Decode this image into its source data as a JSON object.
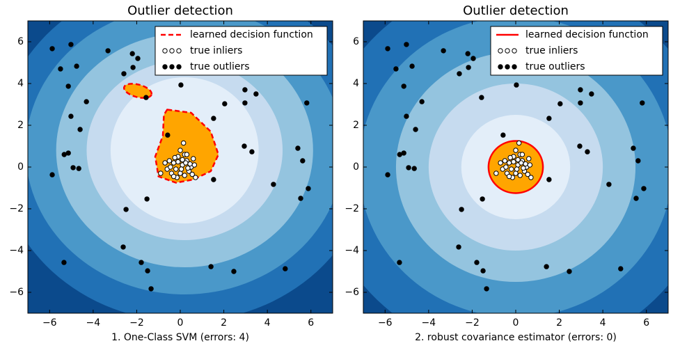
{
  "chart_data": [
    {
      "type": "scatter",
      "title": "Outlier detection",
      "xlabel": "1. One-Class SVM (errors: 4)",
      "xlim": [
        -7,
        7
      ],
      "ylim": [
        -7,
        7
      ],
      "xticks": [
        {
          "value": -6,
          "label": "−6"
        },
        {
          "value": -4,
          "label": "−4"
        },
        {
          "value": -2,
          "label": "−2"
        },
        0,
        2,
        4,
        6
      ],
      "yticks": [
        {
          "value": -6,
          "label": "−6"
        },
        {
          "value": -4,
          "label": "−4"
        },
        {
          "value": -2,
          "label": "−2"
        },
        0,
        2,
        4,
        6
      ],
      "boundary": {
        "name": "learned decision function",
        "color": "#ff0000",
        "dashed": true
      },
      "series": [
        {
          "name": "true inliers",
          "color": "#ffffff",
          "x": [
            0.0,
            0.2,
            -0.1,
            0.3,
            -0.3,
            0.1,
            0.5,
            -0.5,
            -0.2,
            0.4,
            0.0,
            -0.4,
            0.2,
            0.6,
            -0.6,
            0.7,
            -0.9,
            -0.7,
            0.3,
            0.15,
            -0.15,
            0.45,
            -0.25,
            0.05,
            0.35,
            -0.45,
            0.25,
            -0.1,
            0.55,
            -0.3,
            0.1,
            0.65
          ],
          "y": [
            0.8,
            0.6,
            0.5,
            0.3,
            0.2,
            0.1,
            0.0,
            0.3,
            -0.1,
            -0.2,
            -0.3,
            -0.3,
            -0.4,
            0.4,
            -0.1,
            -0.5,
            -0.3,
            0.2,
            0.6,
            1.15,
            -0.5,
            0.15,
            0.45,
            -0.1,
            -0.05,
            0.0,
            0.2,
            0.25,
            -0.35,
            -0.45,
            0.35,
            0.1
          ]
        },
        {
          "name": "true outliers",
          "color": "#000000",
          "x": [
            -5.88,
            -5.02,
            -5.5,
            -4.76,
            -3.32,
            -2.2,
            -1.95,
            -2.59,
            -2.17,
            -5.14,
            -4.31,
            -1.57,
            0.03,
            -5.02,
            -4.6,
            2.04,
            2.97,
            3.48,
            2.97,
            5.81,
            1.53,
            -0.58,
            2.94,
            3.29,
            5.4,
            5.62,
            -5.33,
            -5.14,
            -5.88,
            -4.92,
            -4.66,
            1.53,
            4.28,
            5.88,
            5.53,
            -1.53,
            -2.49,
            -2.62,
            -5.34,
            -1.79,
            -1.5,
            -1.34,
            1.41,
            2.46,
            4.82
          ],
          "y": [
            5.67,
            5.87,
            4.7,
            4.83,
            5.57,
            5.43,
            5.2,
            4.47,
            4.77,
            3.87,
            3.13,
            3.33,
            3.93,
            2.43,
            1.8,
            3.03,
            3.7,
            3.5,
            3.07,
            3.07,
            2.33,
            1.53,
            1.0,
            0.73,
            0.9,
            0.3,
            0.6,
            0.67,
            -0.37,
            -0.03,
            -0.07,
            -0.6,
            -0.83,
            -1.03,
            -1.5,
            -1.53,
            -2.03,
            -3.83,
            -4.57,
            -4.57,
            -4.97,
            -5.83,
            -4.77,
            -5.0,
            -4.87
          ]
        }
      ]
    },
    {
      "type": "scatter",
      "title": "Outlier detection",
      "xlabel": "2. robust covariance estimator (errors: 0)",
      "xlim": [
        -7,
        7
      ],
      "ylim": [
        -7,
        7
      ],
      "xticks": [
        {
          "value": -6,
          "label": "−6"
        },
        {
          "value": -4,
          "label": "−4"
        },
        {
          "value": -2,
          "label": "−2"
        },
        0,
        2,
        4,
        6
      ],
      "yticks": [
        {
          "value": -6,
          "label": "−6"
        },
        {
          "value": -4,
          "label": "−4"
        },
        {
          "value": -2,
          "label": "−2"
        },
        0,
        2,
        4,
        6
      ],
      "boundary": {
        "name": "learned decision function",
        "color": "#ff0000",
        "dashed": false
      },
      "series": [
        {
          "name": "true inliers",
          "color": "#ffffff",
          "x": [
            0.0,
            0.2,
            -0.1,
            0.3,
            -0.3,
            0.1,
            0.5,
            -0.5,
            -0.2,
            0.4,
            0.0,
            -0.4,
            0.2,
            0.6,
            -0.6,
            0.7,
            -0.9,
            -0.7,
            0.3,
            0.15,
            -0.15,
            0.45,
            -0.25,
            0.05,
            0.35,
            -0.45,
            0.25,
            -0.1,
            0.55,
            -0.3,
            0.1,
            0.65
          ],
          "y": [
            0.8,
            0.6,
            0.5,
            0.3,
            0.2,
            0.1,
            0.0,
            0.3,
            -0.1,
            -0.2,
            -0.3,
            -0.3,
            -0.4,
            0.4,
            -0.1,
            -0.5,
            -0.3,
            0.2,
            0.6,
            1.15,
            -0.5,
            0.15,
            0.45,
            -0.1,
            -0.05,
            0.0,
            0.2,
            0.25,
            -0.35,
            -0.45,
            0.35,
            0.1
          ]
        },
        {
          "name": "true outliers",
          "color": "#000000",
          "x": [
            -5.88,
            -5.02,
            -5.5,
            -4.76,
            -3.32,
            -2.2,
            -1.95,
            -2.59,
            -2.17,
            -5.14,
            -4.31,
            -1.57,
            0.03,
            -5.02,
            -4.6,
            2.04,
            2.97,
            3.48,
            2.97,
            5.81,
            1.53,
            -0.58,
            2.94,
            3.29,
            5.4,
            5.62,
            -5.33,
            -5.14,
            -5.88,
            -4.92,
            -4.66,
            1.53,
            4.28,
            5.88,
            5.53,
            -1.53,
            -2.49,
            -2.62,
            -5.34,
            -1.79,
            -1.5,
            -1.34,
            1.41,
            2.46,
            4.82
          ],
          "y": [
            5.67,
            5.87,
            4.7,
            4.83,
            5.57,
            5.43,
            5.2,
            4.47,
            4.77,
            3.87,
            3.13,
            3.33,
            3.93,
            2.43,
            1.8,
            3.03,
            3.7,
            3.5,
            3.07,
            3.07,
            2.33,
            1.53,
            1.0,
            0.73,
            0.9,
            0.3,
            0.6,
            0.67,
            -0.37,
            -0.03,
            -0.07,
            -0.6,
            -0.83,
            -1.03,
            -1.5,
            -1.53,
            -2.03,
            -3.83,
            -4.57,
            -4.57,
            -4.97,
            -5.83,
            -4.77,
            -5.0,
            -4.87
          ]
        }
      ]
    }
  ]
}
